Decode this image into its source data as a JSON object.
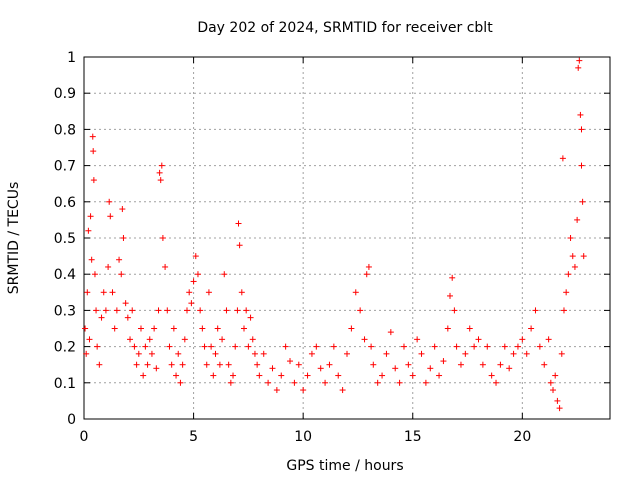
{
  "chart_data": {
    "type": "scatter",
    "title": "Day 202 of 2024, SRMTID for receiver cblt",
    "xlabel": "GPS time / hours",
    "ylabel": "SRMTID / TECUs",
    "xlim": [
      0,
      24
    ],
    "ylim": [
      0,
      1
    ],
    "xticks": [
      0,
      5,
      10,
      15,
      20
    ],
    "xtick_labels": [
      "0",
      "5",
      "10",
      "15",
      "20"
    ],
    "yticks": [
      0,
      0.1,
      0.2,
      0.3,
      0.4,
      0.5,
      0.6,
      0.7,
      0.8,
      0.9,
      1
    ],
    "ytick_labels": [
      "0",
      "0.1",
      "0.2",
      "0.3",
      "0.4",
      "0.5",
      "0.6",
      "0.7",
      "0.8",
      "0.9",
      "1"
    ],
    "grid": true,
    "marker": "plus",
    "color": "#ff0000",
    "series": [
      {
        "name": "SRMTID",
        "points": [
          [
            0.05,
            0.25
          ],
          [
            0.1,
            0.18
          ],
          [
            0.15,
            0.35
          ],
          [
            0.2,
            0.52
          ],
          [
            0.25,
            0.22
          ],
          [
            0.3,
            0.56
          ],
          [
            0.35,
            0.44
          ],
          [
            0.4,
            0.78
          ],
          [
            0.42,
            0.74
          ],
          [
            0.45,
            0.66
          ],
          [
            0.5,
            0.4
          ],
          [
            0.55,
            0.3
          ],
          [
            0.6,
            0.2
          ],
          [
            0.7,
            0.15
          ],
          [
            0.8,
            0.28
          ],
          [
            0.9,
            0.35
          ],
          [
            1.0,
            0.3
          ],
          [
            1.1,
            0.42
          ],
          [
            1.15,
            0.6
          ],
          [
            1.2,
            0.56
          ],
          [
            1.3,
            0.35
          ],
          [
            1.4,
            0.25
          ],
          [
            1.5,
            0.3
          ],
          [
            1.6,
            0.44
          ],
          [
            1.7,
            0.4
          ],
          [
            1.75,
            0.58
          ],
          [
            1.8,
            0.5
          ],
          [
            1.9,
            0.32
          ],
          [
            2.0,
            0.28
          ],
          [
            2.1,
            0.22
          ],
          [
            2.2,
            0.3
          ],
          [
            2.3,
            0.2
          ],
          [
            2.4,
            0.15
          ],
          [
            2.5,
            0.18
          ],
          [
            2.6,
            0.25
          ],
          [
            2.7,
            0.12
          ],
          [
            2.8,
            0.2
          ],
          [
            2.9,
            0.15
          ],
          [
            3.0,
            0.22
          ],
          [
            3.1,
            0.18
          ],
          [
            3.2,
            0.25
          ],
          [
            3.3,
            0.14
          ],
          [
            3.4,
            0.3
          ],
          [
            3.45,
            0.68
          ],
          [
            3.5,
            0.66
          ],
          [
            3.55,
            0.7
          ],
          [
            3.6,
            0.5
          ],
          [
            3.7,
            0.42
          ],
          [
            3.8,
            0.3
          ],
          [
            3.9,
            0.2
          ],
          [
            4.0,
            0.15
          ],
          [
            4.1,
            0.25
          ],
          [
            4.2,
            0.12
          ],
          [
            4.3,
            0.18
          ],
          [
            4.4,
            0.1
          ],
          [
            4.5,
            0.15
          ],
          [
            4.6,
            0.22
          ],
          [
            4.7,
            0.3
          ],
          [
            4.8,
            0.35
          ],
          [
            4.9,
            0.32
          ],
          [
            5.0,
            0.38
          ],
          [
            5.1,
            0.45
          ],
          [
            5.2,
            0.4
          ],
          [
            5.3,
            0.3
          ],
          [
            5.4,
            0.25
          ],
          [
            5.5,
            0.2
          ],
          [
            5.6,
            0.15
          ],
          [
            5.7,
            0.35
          ],
          [
            5.8,
            0.2
          ],
          [
            5.9,
            0.12
          ],
          [
            6.0,
            0.18
          ],
          [
            6.1,
            0.25
          ],
          [
            6.2,
            0.15
          ],
          [
            6.3,
            0.22
          ],
          [
            6.4,
            0.4
          ],
          [
            6.5,
            0.3
          ],
          [
            6.6,
            0.15
          ],
          [
            6.7,
            0.1
          ],
          [
            6.8,
            0.12
          ],
          [
            6.9,
            0.2
          ],
          [
            7.0,
            0.3
          ],
          [
            7.05,
            0.54
          ],
          [
            7.1,
            0.48
          ],
          [
            7.2,
            0.35
          ],
          [
            7.3,
            0.25
          ],
          [
            7.4,
            0.3
          ],
          [
            7.5,
            0.2
          ],
          [
            7.6,
            0.28
          ],
          [
            7.7,
            0.22
          ],
          [
            7.8,
            0.18
          ],
          [
            7.9,
            0.15
          ],
          [
            8.0,
            0.12
          ],
          [
            8.2,
            0.18
          ],
          [
            8.4,
            0.1
          ],
          [
            8.6,
            0.14
          ],
          [
            8.8,
            0.08
          ],
          [
            9.0,
            0.12
          ],
          [
            9.2,
            0.2
          ],
          [
            9.4,
            0.16
          ],
          [
            9.6,
            0.1
          ],
          [
            9.8,
            0.15
          ],
          [
            10.0,
            0.08
          ],
          [
            10.2,
            0.12
          ],
          [
            10.4,
            0.18
          ],
          [
            10.6,
            0.2
          ],
          [
            10.8,
            0.14
          ],
          [
            11.0,
            0.1
          ],
          [
            11.2,
            0.15
          ],
          [
            11.4,
            0.2
          ],
          [
            11.6,
            0.12
          ],
          [
            11.8,
            0.08
          ],
          [
            12.0,
            0.18
          ],
          [
            12.2,
            0.25
          ],
          [
            12.4,
            0.35
          ],
          [
            12.6,
            0.3
          ],
          [
            12.8,
            0.22
          ],
          [
            12.9,
            0.4
          ],
          [
            13.0,
            0.42
          ],
          [
            13.1,
            0.2
          ],
          [
            13.2,
            0.15
          ],
          [
            13.4,
            0.1
          ],
          [
            13.6,
            0.12
          ],
          [
            13.8,
            0.18
          ],
          [
            14.0,
            0.24
          ],
          [
            14.2,
            0.14
          ],
          [
            14.4,
            0.1
          ],
          [
            14.6,
            0.2
          ],
          [
            14.8,
            0.15
          ],
          [
            15.0,
            0.12
          ],
          [
            15.2,
            0.22
          ],
          [
            15.4,
            0.18
          ],
          [
            15.6,
            0.1
          ],
          [
            15.8,
            0.14
          ],
          [
            16.0,
            0.2
          ],
          [
            16.2,
            0.12
          ],
          [
            16.4,
            0.16
          ],
          [
            16.6,
            0.25
          ],
          [
            16.7,
            0.34
          ],
          [
            16.8,
            0.39
          ],
          [
            16.9,
            0.3
          ],
          [
            17.0,
            0.2
          ],
          [
            17.2,
            0.15
          ],
          [
            17.4,
            0.18
          ],
          [
            17.6,
            0.25
          ],
          [
            17.8,
            0.2
          ],
          [
            18.0,
            0.22
          ],
          [
            18.2,
            0.15
          ],
          [
            18.4,
            0.2
          ],
          [
            18.6,
            0.12
          ],
          [
            18.8,
            0.1
          ],
          [
            19.0,
            0.15
          ],
          [
            19.2,
            0.2
          ],
          [
            19.4,
            0.14
          ],
          [
            19.6,
            0.18
          ],
          [
            19.8,
            0.2
          ],
          [
            20.0,
            0.22
          ],
          [
            20.2,
            0.18
          ],
          [
            20.4,
            0.25
          ],
          [
            20.6,
            0.3
          ],
          [
            20.8,
            0.2
          ],
          [
            21.0,
            0.15
          ],
          [
            21.2,
            0.22
          ],
          [
            21.3,
            0.1
          ],
          [
            21.4,
            0.08
          ],
          [
            21.5,
            0.12
          ],
          [
            21.6,
            0.05
          ],
          [
            21.7,
            0.03
          ],
          [
            21.8,
            0.18
          ],
          [
            21.85,
            0.72
          ],
          [
            21.9,
            0.3
          ],
          [
            22.0,
            0.35
          ],
          [
            22.1,
            0.4
          ],
          [
            22.2,
            0.5
          ],
          [
            22.3,
            0.45
          ],
          [
            22.4,
            0.42
          ],
          [
            22.5,
            0.55
          ],
          [
            22.55,
            0.97
          ],
          [
            22.6,
            0.99
          ],
          [
            22.65,
            0.84
          ],
          [
            22.7,
            0.7
          ],
          [
            22.75,
            0.6
          ],
          [
            22.8,
            0.45
          ],
          [
            22.7,
            0.8
          ]
        ]
      }
    ]
  }
}
